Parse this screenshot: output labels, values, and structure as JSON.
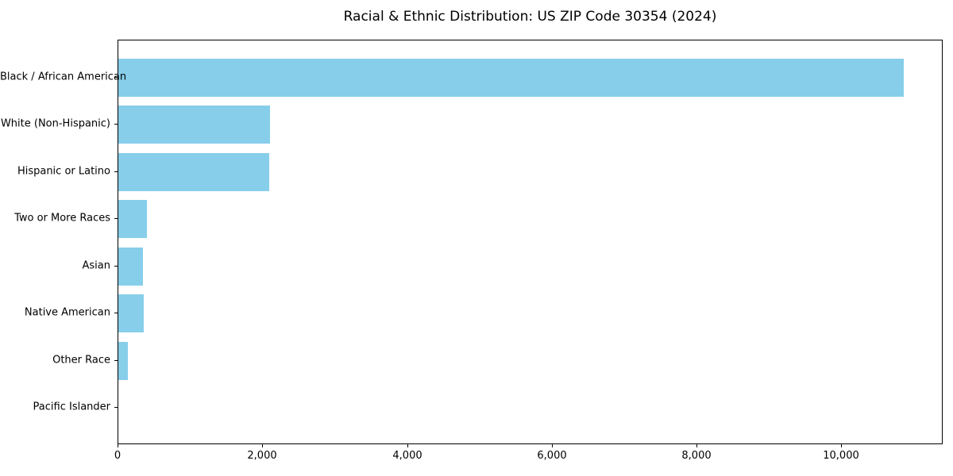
{
  "chart_data": {
    "type": "bar",
    "orientation": "horizontal",
    "title": "Racial & Ethnic Distribution: US ZIP Code 30354 (2024)",
    "categories": [
      "Black / African American",
      "White (Non-Hispanic)",
      "Hispanic or Latino",
      "Two or More Races",
      "Asian",
      "Native American",
      "Other Race",
      "Pacific Islander"
    ],
    "values": [
      10850,
      2100,
      2080,
      390,
      340,
      350,
      130,
      0
    ],
    "xlabel": "",
    "ylabel": "",
    "xlim": [
      0,
      11400
    ],
    "x_ticks": [
      0,
      2000,
      4000,
      6000,
      8000,
      10000
    ],
    "x_tick_labels": [
      "0",
      "2,000",
      "4,000",
      "6,000",
      "8,000",
      "10,000"
    ],
    "bar_color": "#87CEEB",
    "axis_color": "#000000",
    "background_color": "#FFFFFF",
    "grid": false,
    "legend": null
  }
}
